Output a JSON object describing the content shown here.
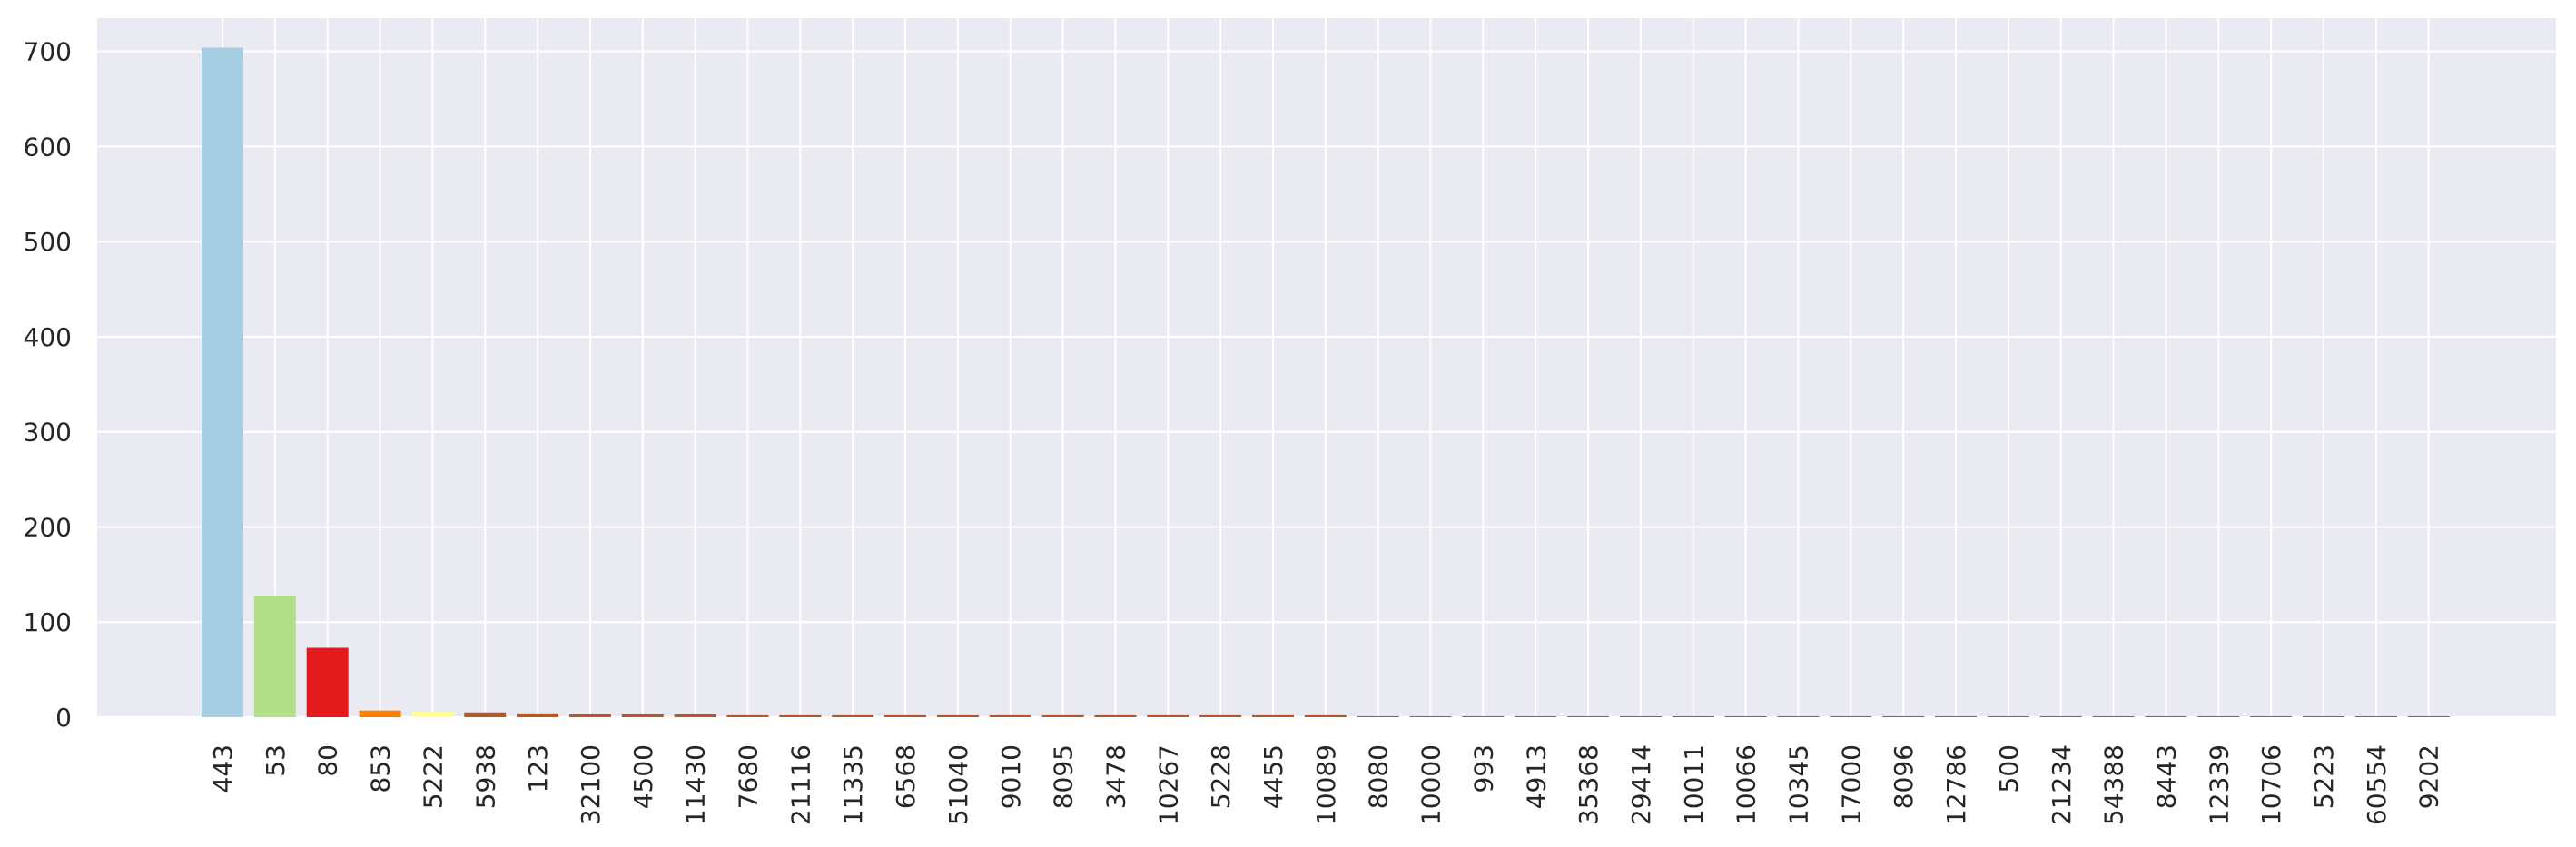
{
  "chart_data": {
    "type": "bar",
    "title": "",
    "xlabel": "",
    "ylabel": "",
    "ylim": [
      0,
      735
    ],
    "yticks": [
      0,
      100,
      200,
      300,
      400,
      500,
      600,
      700
    ],
    "grid": true,
    "legend": "none",
    "background": "#eaeaf2",
    "grid_color": "#ffffff",
    "categories": [
      "443",
      "53",
      "80",
      "853",
      "5222",
      "5938",
      "123",
      "32100",
      "4500",
      "11430",
      "7680",
      "21116",
      "11335",
      "6568",
      "51040",
      "9010",
      "8095",
      "3478",
      "10267",
      "5228",
      "4455",
      "10089",
      "8080",
      "10000",
      "993",
      "4913",
      "35368",
      "29414",
      "10011",
      "10066",
      "10345",
      "17000",
      "8096",
      "12786",
      "500",
      "21234",
      "54388",
      "8443",
      "12339",
      "10706",
      "5223",
      "60554",
      "9202"
    ],
    "values": [
      704,
      128,
      73,
      7,
      6,
      5,
      4,
      3,
      3,
      3,
      2,
      2,
      2,
      2,
      2,
      2,
      2,
      2,
      2,
      2,
      2,
      2,
      1,
      1,
      1,
      1,
      1,
      1,
      1,
      1,
      1,
      1,
      1,
      1,
      1,
      1,
      1,
      1,
      1,
      1,
      1,
      1,
      1
    ],
    "colors": [
      "#a6cee3",
      "#b2df8a",
      "#e31a1c",
      "#ff7f00",
      "#ffff99",
      "#b15928",
      "#b15928",
      "#b15928",
      "#b15928",
      "#b15928",
      "#b15928",
      "#b15928",
      "#b15928",
      "#b15928",
      "#b15928",
      "#b15928",
      "#b15928",
      "#b15928",
      "#b15928",
      "#b15928",
      "#b15928",
      "#b15928",
      "#b15928",
      "#b15928",
      "#b15928",
      "#b15928",
      "#b15928",
      "#b15928",
      "#b15928",
      "#b15928",
      "#b15928",
      "#b15928",
      "#b15928",
      "#b15928",
      "#b15928",
      "#b15928",
      "#b15928",
      "#b15928",
      "#b15928",
      "#b15928",
      "#b15928",
      "#b15928",
      "#b15928"
    ]
  }
}
